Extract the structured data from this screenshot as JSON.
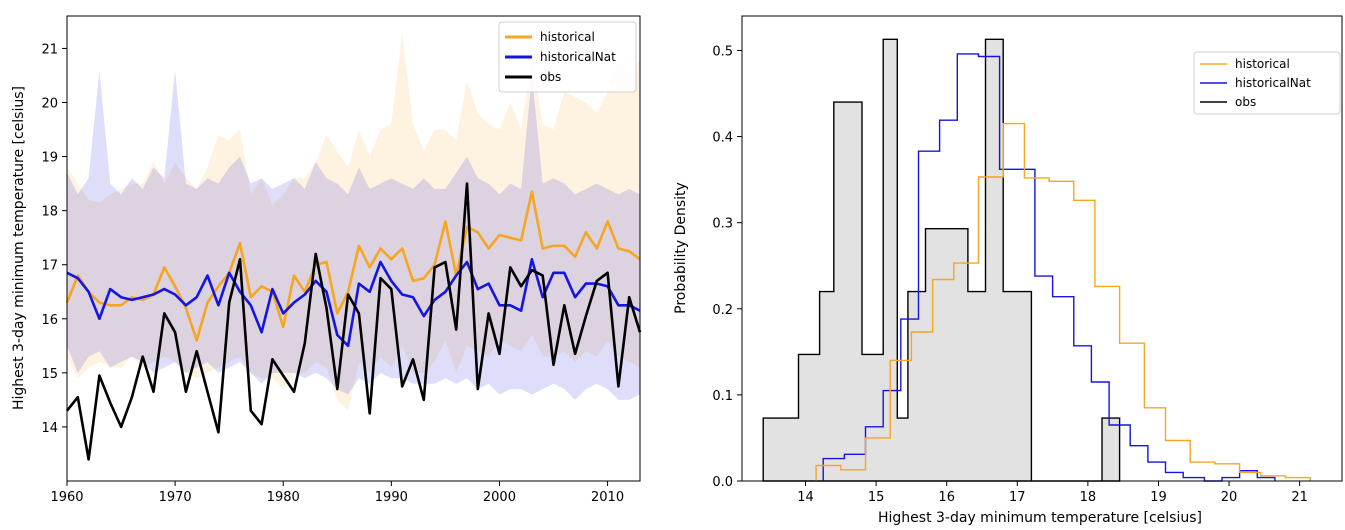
{
  "chart_data": [
    {
      "type": "line",
      "title": "",
      "xlabel": "",
      "ylabel": "Highest 3-day minimum temperature [celsius]",
      "xlim": [
        1960,
        2013
      ],
      "ylim": [
        13,
        21.6
      ],
      "xticks": [
        1960,
        1970,
        1980,
        1990,
        2000,
        2010
      ],
      "yticks": [
        14,
        15,
        16,
        17,
        18,
        19,
        20,
        21
      ],
      "legend_position": "top-right",
      "years": [
        1960,
        1961,
        1962,
        1963,
        1964,
        1965,
        1966,
        1967,
        1968,
        1969,
        1970,
        1971,
        1972,
        1973,
        1974,
        1975,
        1976,
        1977,
        1978,
        1979,
        1980,
        1981,
        1982,
        1983,
        1984,
        1985,
        1986,
        1987,
        1988,
        1989,
        1990,
        1991,
        1992,
        1993,
        1994,
        1995,
        1996,
        1997,
        1998,
        1999,
        2000,
        2001,
        2002,
        2003,
        2004,
        2005,
        2006,
        2007,
        2008,
        2009,
        2010,
        2011,
        2012,
        2013
      ],
      "series": [
        {
          "name": "historical",
          "color": "#f5a623",
          "values": [
            16.3,
            16.8,
            16.5,
            16.3,
            16.25,
            16.25,
            16.4,
            16.35,
            16.45,
            16.95,
            16.6,
            16.2,
            15.6,
            16.3,
            16.6,
            16.85,
            17.4,
            16.4,
            16.6,
            16.5,
            15.85,
            16.8,
            16.5,
            17.0,
            17.05,
            16.1,
            16.5,
            17.35,
            16.95,
            17.3,
            17.1,
            17.3,
            16.7,
            16.75,
            17.0,
            17.8,
            16.8,
            17.7,
            17.6,
            17.3,
            17.55,
            17.5,
            17.45,
            18.35,
            17.3,
            17.35,
            17.35,
            17.15,
            17.6,
            17.3,
            17.8,
            17.3,
            17.25,
            17.1
          ],
          "band_upper": [
            18.8,
            18.5,
            18.2,
            18.15,
            18.3,
            18.4,
            18.5,
            18.5,
            18.9,
            18.5,
            18.9,
            18.6,
            18.4,
            18.8,
            19.4,
            19.3,
            19.5,
            18.3,
            18.6,
            18.1,
            18.3,
            18.6,
            18.6,
            18.9,
            19.4,
            19.1,
            18.8,
            19.5,
            19.0,
            19.5,
            19.6,
            21.3,
            19.6,
            19.1,
            19.5,
            19.5,
            19.3,
            20.4,
            19.8,
            19.6,
            19.5,
            20.0,
            19.5,
            20.8,
            19.6,
            19.5,
            20.2,
            20.1,
            20.0,
            19.8,
            20.2,
            20.8,
            20.5,
            20.8
          ],
          "band_lower": [
            15.3,
            14.9,
            15.1,
            15.2,
            15.1,
            15.1,
            15.3,
            15.1,
            15.2,
            15.3,
            15.2,
            15.0,
            14.9,
            15.0,
            15.1,
            15.2,
            15.3,
            15.0,
            14.9,
            14.9,
            14.7,
            15.0,
            15.0,
            15.2,
            15.1,
            14.5,
            14.3,
            15.2,
            15.0,
            15.3,
            15.1,
            15.5,
            15.0,
            15.0,
            15.2,
            15.6,
            15.0,
            15.5,
            15.4,
            15.3,
            15.6,
            15.5,
            15.4,
            15.7,
            15.3,
            15.3,
            15.4,
            15.2,
            15.4,
            15.3,
            15.6,
            15.3,
            15.2,
            15.1
          ]
        },
        {
          "name": "historicalNat",
          "color": "#1515e0",
          "values": [
            16.85,
            16.75,
            16.5,
            16.0,
            16.55,
            16.4,
            16.35,
            16.4,
            16.45,
            16.55,
            16.45,
            16.25,
            16.4,
            16.8,
            16.25,
            16.85,
            16.5,
            16.25,
            15.75,
            16.55,
            16.1,
            16.3,
            16.45,
            16.7,
            16.5,
            15.7,
            15.5,
            16.65,
            16.5,
            17.05,
            16.7,
            16.45,
            16.4,
            16.05,
            16.35,
            16.5,
            16.8,
            17.05,
            16.55,
            16.65,
            16.25,
            16.25,
            16.15,
            17.1,
            16.4,
            16.85,
            16.85,
            16.4,
            16.65,
            16.65,
            16.6,
            16.25,
            16.25,
            16.15
          ],
          "band_upper": [
            18.7,
            18.3,
            18.6,
            20.6,
            18.5,
            18.3,
            18.6,
            18.4,
            18.8,
            18.6,
            20.6,
            18.5,
            18.4,
            18.6,
            18.5,
            18.8,
            19.0,
            18.5,
            18.6,
            18.4,
            18.5,
            18.6,
            18.4,
            18.9,
            18.6,
            18.5,
            18.3,
            18.8,
            18.4,
            18.5,
            18.6,
            18.5,
            18.4,
            18.6,
            18.4,
            18.4,
            18.7,
            19.0,
            18.6,
            18.5,
            18.3,
            18.5,
            18.4,
            20.5,
            18.5,
            18.6,
            18.5,
            18.3,
            18.4,
            18.5,
            18.4,
            18.3,
            18.4,
            18.3
          ],
          "band_lower": [
            15.5,
            15.0,
            15.3,
            15.4,
            15.1,
            15.2,
            15.3,
            15.2,
            15.0,
            15.1,
            15.2,
            15.0,
            15.1,
            15.2,
            15.0,
            15.1,
            15.2,
            15.0,
            14.8,
            15.0,
            15.0,
            15.0,
            14.9,
            15.0,
            14.9,
            14.7,
            14.6,
            14.9,
            14.8,
            15.0,
            14.9,
            14.9,
            14.8,
            14.8,
            14.8,
            14.9,
            14.8,
            14.9,
            14.7,
            14.8,
            14.6,
            14.7,
            14.7,
            14.6,
            14.7,
            14.8,
            14.7,
            14.5,
            14.7,
            14.8,
            14.7,
            14.5,
            14.5,
            14.6
          ]
        },
        {
          "name": "obs",
          "color": "#000000",
          "values": [
            14.3,
            14.55,
            13.4,
            14.95,
            14.45,
            14.0,
            14.55,
            15.3,
            14.65,
            16.1,
            15.75,
            14.65,
            15.4,
            14.65,
            13.9,
            16.3,
            17.1,
            14.3,
            14.05,
            15.25,
            14.95,
            14.65,
            15.55,
            17.2,
            16.2,
            14.7,
            16.45,
            16.1,
            14.25,
            16.75,
            16.55,
            14.75,
            15.25,
            14.5,
            16.95,
            17.05,
            15.8,
            18.5,
            14.7,
            16.1,
            15.35,
            16.95,
            16.6,
            16.9,
            16.8,
            15.15,
            16.25,
            15.35,
            16.05,
            16.7,
            16.85,
            14.75,
            16.4,
            15.75
          ]
        }
      ]
    },
    {
      "type": "histogram",
      "title": "",
      "xlabel": "Highest 3-day minimum temperature [celsius]",
      "ylabel": "Probability Density",
      "xlim": [
        13.1,
        21.6
      ],
      "ylim": [
        0,
        0.54
      ],
      "xticks": [
        14,
        15,
        16,
        17,
        18,
        19,
        20,
        21
      ],
      "yticks": [
        0.0,
        0.1,
        0.2,
        0.3,
        0.4,
        0.5
      ],
      "legend_position": "top-right",
      "series": [
        {
          "name": "obs",
          "color": "#000000",
          "fill": "#e2e2e2",
          "edges": [
            13.4,
            13.9,
            14.2,
            14.4,
            14.55,
            14.8,
            15.1,
            15.3,
            15.45,
            15.7,
            15.9,
            16.3,
            16.55,
            16.8,
            16.95,
            17.2,
            18.2,
            18.45
          ],
          "values": [
            0.073,
            0.147,
            0.22,
            0.44,
            0.44,
            0.147,
            0.513,
            0.073,
            0.22,
            0.293,
            0.293,
            0.22,
            0.513,
            0.22,
            0.22,
            0,
            0.073
          ]
        },
        {
          "name": "historicalNat",
          "color": "#1515e0",
          "edges": [
            14.25,
            14.55,
            14.85,
            15.1,
            15.35,
            15.6,
            15.9,
            16.15,
            16.45,
            16.75,
            17.0,
            17.25,
            17.5,
            17.8,
            18.05,
            18.3,
            18.6,
            18.85,
            19.1,
            19.35,
            19.65,
            19.9,
            20.15,
            20.4,
            20.65
          ],
          "values": [
            0.026,
            0.031,
            0.063,
            0.105,
            0.188,
            0.383,
            0.419,
            0.496,
            0.493,
            0.362,
            0.362,
            0.238,
            0.214,
            0.157,
            0.115,
            0.065,
            0.041,
            0.022,
            0.01,
            0.004,
            0.0,
            0.004,
            0.012,
            0.004
          ]
        },
        {
          "name": "historical",
          "color": "#f5a623",
          "edges": [
            14.15,
            14.5,
            14.85,
            15.2,
            15.5,
            15.8,
            16.1,
            16.45,
            16.8,
            17.1,
            17.45,
            17.8,
            18.1,
            18.45,
            18.8,
            19.1,
            19.45,
            19.8,
            20.15,
            20.45,
            20.8,
            21.15
          ],
          "values": [
            0.018,
            0.013,
            0.05,
            0.14,
            0.173,
            0.234,
            0.253,
            0.353,
            0.415,
            0.352,
            0.348,
            0.326,
            0.226,
            0.16,
            0.085,
            0.047,
            0.022,
            0.02,
            0.01,
            0.006,
            0.004
          ]
        }
      ]
    }
  ]
}
